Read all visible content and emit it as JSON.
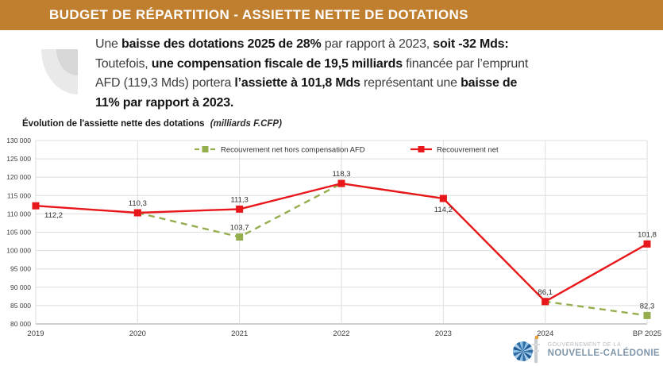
{
  "header": {
    "title": "BUDGET DE RÉPARTITION - ASSIETTE NETTE DE DOTATIONS",
    "bg_color": "#c07f2e"
  },
  "summary": {
    "segments": [
      {
        "t": "Une ",
        "b": 0
      },
      {
        "t": "baisse des dotations 2025 de 28%",
        "b": 1
      },
      {
        "t": " par rapport à 2023, ",
        "b": 0
      },
      {
        "t": "soit -32 Mds:",
        "b": 1,
        "br": 1
      },
      {
        "t": "Toutefois, ",
        "b": 0
      },
      {
        "t": "une compensation fiscale de 19,5 milliards",
        "b": 1
      },
      {
        "t": " financée par l’emprunt",
        "b": 0,
        "br": 1
      },
      {
        "t": "AFD (119,3 Mds) portera ",
        "b": 0
      },
      {
        "t": "l’assiette à 101,8 Mds",
        "b": 1
      },
      {
        "t": " représentant une ",
        "b": 0
      },
      {
        "t": "baisse de",
        "b": 1,
        "br": 1
      },
      {
        "t": "11% par rapport à 2023.",
        "b": 1
      }
    ]
  },
  "chart_data": {
    "type": "line",
    "title": "Évolution de l'assiette nette des dotations",
    "title_suffix": "(milliards F.CFP)",
    "xlabel": "",
    "ylabel": "",
    "categories": [
      "2019",
      "2020",
      "2021",
      "2022",
      "2023",
      "2024",
      "BP 2025"
    ],
    "y_axis": {
      "min": 80000,
      "max": 130000,
      "step": 5000,
      "label_example": "130 000"
    },
    "grid": true,
    "legend_position": "top",
    "colors": {
      "grid": "#dedede",
      "axis_line": "#9c9c9c",
      "tick_text": "#3c3c3c",
      "label_text": "#2f2f2f"
    },
    "series": [
      {
        "name": "Recouvrement net hors compensation AFD",
        "color": "#94ae4d",
        "dashed": true,
        "values": [
          null,
          110300,
          103700,
          118300,
          114200,
          86100,
          82300
        ],
        "labels": [
          null,
          null,
          "103,7",
          null,
          null,
          null,
          "82,3"
        ],
        "label_sides": [
          null,
          null,
          "above",
          null,
          null,
          null,
          "above"
        ]
      },
      {
        "name": "Recouvrement net",
        "color": "#e8171b",
        "dashed": false,
        "values": [
          112200,
          110300,
          111300,
          118300,
          114200,
          86100,
          101800
        ],
        "labels": [
          "112,2",
          "110,3",
          "111,3",
          "118,3",
          "114,2",
          "86,1",
          "101,8"
        ],
        "label_sides": [
          "below-right",
          "above",
          "above",
          "above",
          "below",
          "above",
          "above"
        ]
      }
    ]
  },
  "footer": {
    "org_line1": "GOUVERNEMENT DE LA",
    "org_line2": "NOUVELLE-CALÉDONIE"
  }
}
